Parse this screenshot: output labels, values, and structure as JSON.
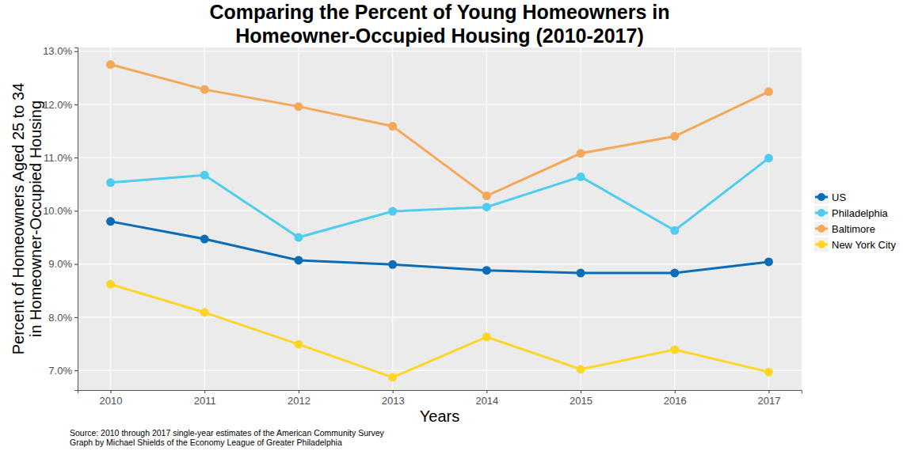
{
  "chart_data": {
    "type": "line",
    "title": "Comparing the Percent of Young Homeowners in\nHomeowner-Occupied Housing (2010-2017)",
    "x_label": "Years",
    "y_label": "Percent of Homeowners Aged 25 to 34\nin Homeowner-Occupied Housing",
    "annotations": [
      "Source: 2010 through 2017 single-year estimates of the American Community Survey",
      "Graph by Michael Shields of the Economy League of Greater Philadelphia"
    ],
    "x": [
      2010,
      2011,
      2012,
      2013,
      2014,
      2015,
      2016,
      2017
    ],
    "xlim": [
      2009.65,
      2017.35
    ],
    "xticks": [
      2010,
      2011,
      2012,
      2013,
      2014,
      2015,
      2016,
      2017
    ],
    "ylim": [
      6.63,
      13.07
    ],
    "yticks": [
      {
        "value": 7,
        "label": "7.0%"
      },
      {
        "value": 8,
        "label": "8.0%"
      },
      {
        "value": 9,
        "label": "9.0%"
      },
      {
        "value": 10,
        "label": "10.0%"
      },
      {
        "value": 11,
        "label": "11.0%"
      },
      {
        "value": 12,
        "label": "12.0%"
      },
      {
        "value": 13,
        "label": "13.0%"
      }
    ],
    "grid": true,
    "legend": "right",
    "marker": "circle",
    "line_style": "solid",
    "series": [
      {
        "name": "US",
        "color": "#0b6db5",
        "values": [
          9.8,
          9.47,
          9.07,
          8.99,
          8.88,
          8.83,
          8.83,
          9.04
        ]
      },
      {
        "name": "Philadelphia",
        "color": "#4fcdee",
        "values": [
          10.53,
          10.67,
          9.5,
          9.99,
          10.07,
          10.64,
          9.63,
          10.99
        ]
      },
      {
        "name": "Baltimore",
        "color": "#f5a858",
        "values": [
          12.75,
          12.28,
          11.96,
          11.59,
          10.28,
          11.08,
          11.4,
          12.24
        ]
      },
      {
        "name": "New York City",
        "color": "#fdd628",
        "values": [
          8.62,
          8.09,
          7.49,
          6.87,
          7.63,
          7.02,
          7.39,
          6.97
        ]
      }
    ]
  }
}
